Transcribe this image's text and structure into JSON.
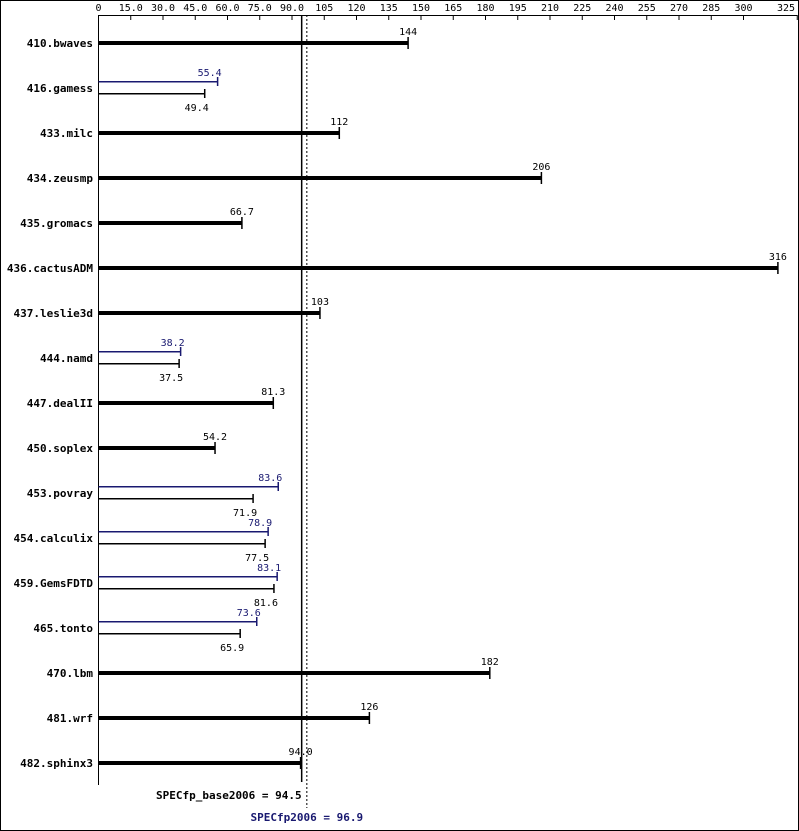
{
  "chart_data": {
    "type": "bar",
    "categories": [
      "410.bwaves",
      "416.gamess",
      "433.milc",
      "434.zeusmp",
      "435.gromacs",
      "436.cactusADM",
      "437.leslie3d",
      "444.namd",
      "447.dealII",
      "450.soplex",
      "453.povray",
      "454.calculix",
      "459.GemsFDTD",
      "465.tonto",
      "470.lbm",
      "481.wrf",
      "482.sphinx3"
    ],
    "series": [
      {
        "color": "#000000",
        "values": [
          144,
          49.4,
          112,
          206,
          66.7,
          316,
          103,
          37.5,
          81.3,
          54.2,
          71.9,
          77.5,
          81.6,
          65.9,
          182,
          126,
          94.0
        ],
        "value_labels": [
          "144",
          "49.4",
          "112",
          "206",
          "66.7",
          "316",
          "103",
          "37.5",
          "81.3",
          "54.2",
          "71.9",
          "77.5",
          "81.6",
          "65.9",
          "182",
          "126",
          "94.0"
        ]
      },
      {
        "color": "#191970",
        "values": [
          null,
          55.4,
          null,
          null,
          null,
          null,
          null,
          38.2,
          null,
          null,
          83.6,
          78.9,
          83.1,
          73.6,
          null,
          null,
          null
        ],
        "value_labels": [
          null,
          "55.4",
          null,
          null,
          null,
          null,
          null,
          "38.2",
          null,
          null,
          "83.6",
          "78.9",
          "83.1",
          "73.6",
          null,
          null,
          null
        ]
      }
    ],
    "xlim": [
      0,
      325
    ],
    "xticks": [
      0,
      {
        "value": 15,
        "label": "15.0"
      },
      {
        "value": 30,
        "label": "30.0"
      },
      {
        "value": 45,
        "label": "45.0"
      },
      {
        "value": 60,
        "label": "60.0"
      },
      {
        "value": 75,
        "label": "75.0"
      },
      {
        "value": 90,
        "label": "90.0"
      },
      105,
      120,
      135,
      150,
      165,
      180,
      195,
      210,
      225,
      240,
      255,
      270,
      285,
      300,
      325
    ],
    "base_metric": {
      "label": "SPECfp_base2006 = 94.5",
      "value": 94.5
    },
    "peak_metric": {
      "label": "SPECfp2006 = 96.9",
      "value": 96.9
    }
  }
}
